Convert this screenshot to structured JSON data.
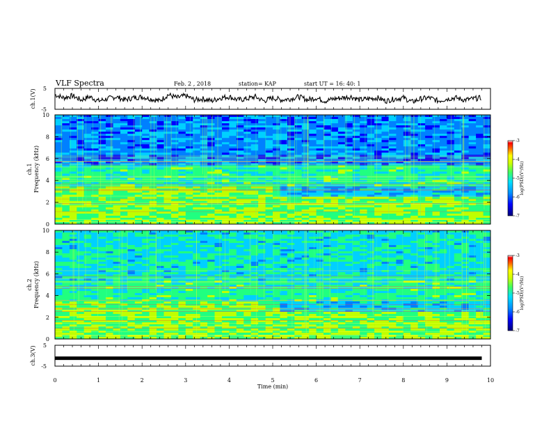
{
  "header": {
    "title": "VLF Spectra",
    "date": "Feb. 2 , 2018",
    "station": "station= KAP",
    "start_time": "start  UT =   16: 40: 1"
  },
  "chart_data": [
    {
      "type": "line",
      "panel": "ch1-waveform",
      "ylabel": "ch.1(V)",
      "yticks": [
        "5",
        "-5"
      ],
      "ylim": [
        -5,
        5
      ],
      "xlim": [
        0,
        10
      ],
      "series": [
        {
          "x": [
            0,
            0.2,
            0.4,
            0.6,
            0.8,
            1,
            1.2,
            1.4,
            1.6,
            1.8,
            2,
            2.2,
            2.4,
            2.6,
            2.8,
            3,
            3.2,
            3.4,
            3.6,
            3.8,
            4,
            4.2,
            4.4,
            4.6,
            4.8,
            5,
            5.2,
            5.4,
            5.6,
            5.8,
            6,
            6.2,
            6.4,
            6.6,
            6.8,
            7,
            7.2,
            7.4,
            7.6,
            7.8,
            8,
            8.2,
            8.4,
            8.6,
            8.8,
            9,
            9.2,
            9.4,
            9.6,
            9.8
          ],
          "values": [
            2,
            0.5,
            1.5,
            -0.5,
            1,
            -1,
            0,
            1,
            -0.5,
            0.5,
            1,
            0,
            -1,
            2,
            0.5,
            1.5,
            -0.5,
            0,
            -1,
            0.5,
            1,
            -0.5,
            0,
            1,
            -1,
            0.5,
            -0.5,
            0,
            1,
            -0.5,
            0.5,
            -1,
            0,
            0.5,
            1,
            -0.5,
            0,
            0.5,
            -1,
            0,
            0.5,
            -1.5,
            0,
            0.5,
            -1,
            0,
            0.5,
            -0.5,
            0,
            0.5
          ]
        }
      ]
    },
    {
      "type": "heatmap",
      "panel": "ch1-spectrogram",
      "ylabel": "Frequency (kHz)",
      "channel_label": "ch.1",
      "yticks": [
        "0",
        "2",
        "4",
        "6",
        "8",
        "10"
      ],
      "ylim": [
        0,
        10
      ],
      "xlim": [
        0,
        10
      ],
      "colorbar": {
        "label": "log(PSD)(V²/Hz)",
        "ticks": [
          "-3",
          "-4",
          "-5",
          "-6",
          "-7"
        ],
        "range": [
          -7,
          -3
        ]
      }
    },
    {
      "type": "heatmap",
      "panel": "ch2-spectrogram",
      "ylabel": "Frequency (kHz)",
      "channel_label": "ch.2",
      "yticks": [
        "0",
        "2",
        "4",
        "6",
        "8",
        "10"
      ],
      "ylim": [
        0,
        10
      ],
      "xlim": [
        0,
        10
      ],
      "colorbar": {
        "label": "log(PSD)(V²/Hz)",
        "ticks": [
          "-3",
          "-4",
          "-5",
          "-6",
          "-7"
        ],
        "range": [
          -7,
          -3
        ]
      }
    },
    {
      "type": "line",
      "panel": "ch3-waveform",
      "ylabel": "ch.3(V)",
      "yticks": [
        "5",
        "-5"
      ],
      "ylim": [
        -5,
        5
      ],
      "xlim": [
        0,
        10
      ],
      "series": [
        {
          "x": [
            0,
            9.8
          ],
          "values": [
            -1.2,
            -1.2
          ]
        }
      ],
      "xlabel": "Time  (min)",
      "xticks": [
        "0",
        "1",
        "2",
        "3",
        "4",
        "5",
        "6",
        "7",
        "8",
        "9",
        "10"
      ]
    }
  ],
  "colors": {
    "colormap": [
      "#00007a",
      "#0000ff",
      "#0080ff",
      "#00d0ff",
      "#20ff80",
      "#c0ff00",
      "#ffff00",
      "#ff8000",
      "#ff0000",
      "#ffffff"
    ],
    "trace": "#000000",
    "frame": "#000000"
  }
}
